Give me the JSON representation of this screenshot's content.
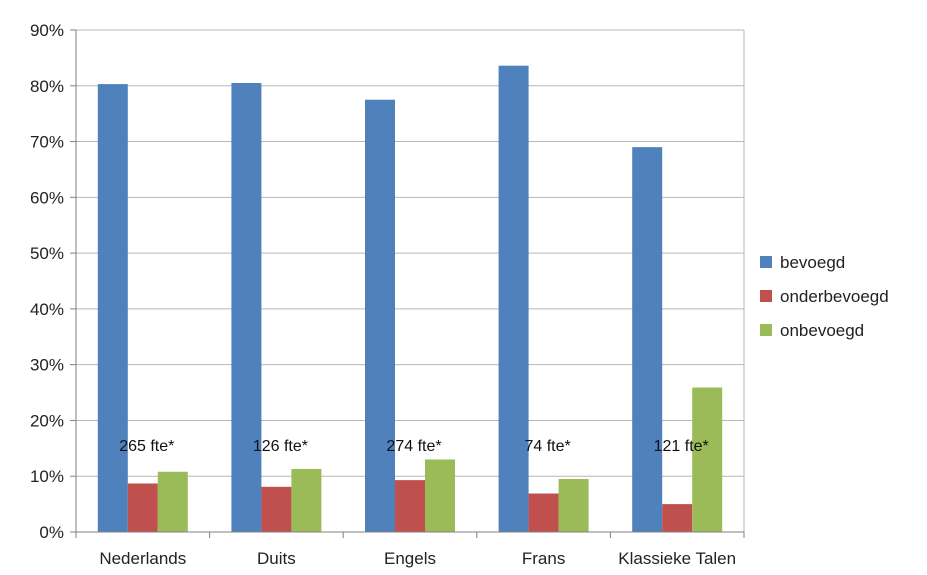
{
  "chart_data": {
    "type": "bar",
    "categories": [
      "Nederlands",
      "Duits",
      "Engels",
      "Frans",
      "Klassieke Talen"
    ],
    "series": [
      {
        "name": "bevoegd",
        "color": "#4F81BD",
        "values": [
          80.3,
          80.5,
          77.5,
          83.6,
          69.0
        ]
      },
      {
        "name": "onderbevoegd",
        "color": "#C0504D",
        "values": [
          8.7,
          8.1,
          9.3,
          6.9,
          5.0
        ]
      },
      {
        "name": "onbevoegd",
        "color": "#9BBB59",
        "values": [
          10.8,
          11.3,
          13.0,
          9.5,
          25.9
        ]
      }
    ],
    "annotations": [
      "265 fte*",
      "126 fte*",
      "274 fte*",
      "74 fte*",
      "121 fte*"
    ],
    "y_ticks": [
      "0%",
      "10%",
      "20%",
      "30%",
      "40%",
      "50%",
      "60%",
      "70%",
      "80%",
      "90%"
    ],
    "ylim": [
      0,
      90
    ],
    "grid": true,
    "legend_position": "right",
    "title": "",
    "xlabel": "",
    "ylabel": ""
  }
}
